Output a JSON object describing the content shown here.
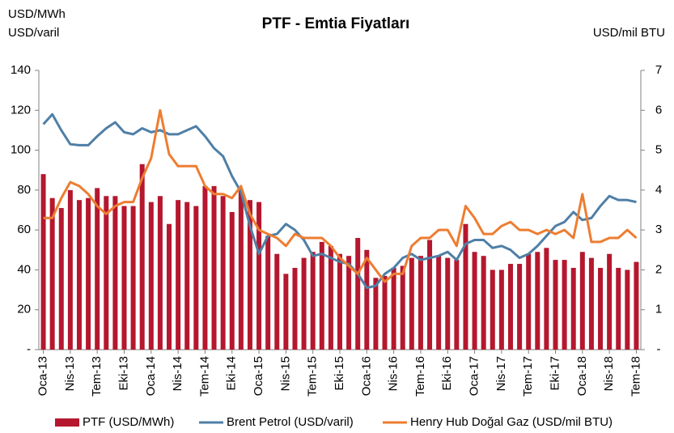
{
  "chart_data": {
    "type": "bar",
    "title": "PTF - Emtia Fiyatları",
    "ylabel": [
      "USD/MWh",
      "USD/varil"
    ],
    "y2label": "USD/mil BTU",
    "categories": [
      "Oca-13",
      null,
      null,
      "Nis-13",
      null,
      null,
      "Tem-13",
      null,
      null,
      "Eki-13",
      null,
      null,
      "Oca-14",
      null,
      null,
      "Nis-14",
      null,
      null,
      "Tem-14",
      null,
      null,
      "Eki-14",
      null,
      null,
      "Oca-15",
      null,
      null,
      "Nis-15",
      null,
      null,
      "Tem-15",
      null,
      null,
      "Eki-15",
      null,
      null,
      "Oca-16",
      null,
      null,
      "Nis-16",
      null,
      null,
      "Tem-16",
      null,
      null,
      "Eki-16",
      null,
      null,
      "Oca-17",
      null,
      null,
      "Nis-17",
      null,
      null,
      "Tem-17",
      null,
      null,
      "Eki-17",
      null,
      null,
      "Oca-18",
      null,
      null,
      "Nis-18",
      null,
      null,
      "Tem-18"
    ],
    "series": [
      {
        "name": "PTF (USD/MWh)",
        "type": "bar",
        "axis": "y",
        "color": "#b5172e",
        "values": [
          88,
          76,
          71,
          80,
          75,
          76,
          81,
          77,
          77,
          72,
          72,
          93,
          74,
          77,
          63,
          75,
          74,
          72,
          82,
          82,
          77,
          69,
          80,
          75,
          74,
          57,
          48,
          38,
          41,
          46,
          49,
          54,
          52,
          48,
          47,
          56,
          50,
          36,
          37,
          41,
          42,
          46,
          47,
          55,
          47,
          46,
          45,
          63,
          49,
          47,
          40,
          40,
          43,
          43,
          48,
          49,
          51,
          45,
          45,
          41,
          49,
          46,
          41,
          48,
          41,
          40,
          44
        ]
      },
      {
        "name": "Brent Petrol (USD/varil)",
        "type": "line",
        "axis": "y",
        "color": "#4f7fa6",
        "values": [
          113,
          118,
          110,
          103,
          102.5,
          102.5,
          107,
          111,
          114,
          109,
          108,
          111,
          109,
          110,
          108,
          108,
          110,
          112,
          107,
          101,
          97,
          87,
          79,
          62,
          48,
          57,
          58,
          63,
          60,
          55,
          47,
          48,
          46,
          44,
          43,
          38,
          31,
          32,
          38,
          41,
          46,
          48,
          45,
          46,
          47,
          49,
          45,
          53,
          55,
          55,
          51,
          52,
          50,
          46,
          48,
          52,
          57,
          62,
          64,
          69,
          65,
          66,
          72,
          77,
          75,
          75,
          74
        ]
      },
      {
        "name": "Henry Hub Doğal Gaz (USD/mil BTU)",
        "type": "line",
        "axis": "y2",
        "color": "#ed7d31",
        "values": [
          3.3,
          3.3,
          3.8,
          4.2,
          4.1,
          3.9,
          3.6,
          3.4,
          3.6,
          3.7,
          3.7,
          4.3,
          4.8,
          6.0,
          4.9,
          4.6,
          4.6,
          4.6,
          4.1,
          3.9,
          3.9,
          3.8,
          4.1,
          3.4,
          3.0,
          2.9,
          2.8,
          2.6,
          2.9,
          2.8,
          2.8,
          2.8,
          2.6,
          2.3,
          2.1,
          1.9,
          2.3,
          2.0,
          1.7,
          1.9,
          1.9,
          2.6,
          2.8,
          2.8,
          3.0,
          3.0,
          2.6,
          3.6,
          3.3,
          2.9,
          2.9,
          3.1,
          3.2,
          3.0,
          3.0,
          2.9,
          3.0,
          2.9,
          3.0,
          2.8,
          3.9,
          2.7,
          2.7,
          2.8,
          2.8,
          3.0,
          2.8
        ]
      }
    ],
    "ylim": [
      0,
      140
    ],
    "yticks": [
      {
        "value": 0,
        "label": "-"
      },
      20,
      40,
      60,
      80,
      100,
      120,
      140
    ],
    "y2lim": [
      0,
      7
    ],
    "y2ticks": [
      {
        "value": 0,
        "label": "-"
      },
      1,
      2,
      3,
      4,
      5,
      6,
      7
    ],
    "legend": "bottom"
  }
}
